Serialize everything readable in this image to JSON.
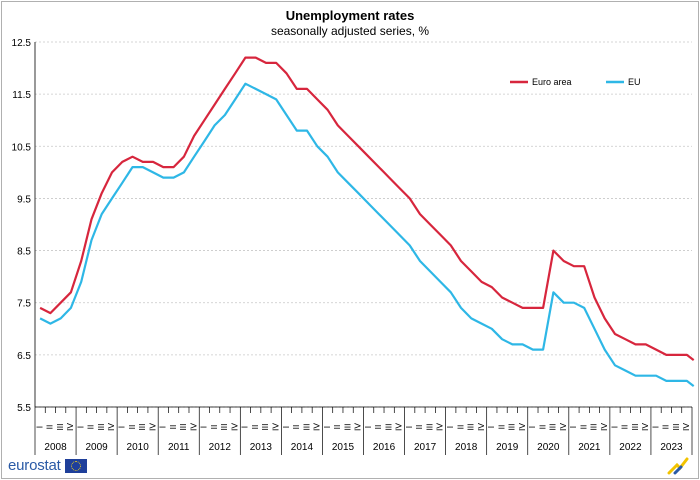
{
  "chart_data": {
    "type": "line",
    "title": "Unemployment rates",
    "subtitle": "seasonally adjusted series, %",
    "xlabel": "",
    "ylabel": "",
    "ylim": [
      5.5,
      12.5
    ],
    "yticks": [
      "5.5",
      "6.5",
      "7.5",
      "8.5",
      "9.5",
      "10.5",
      "11.5",
      "12.5"
    ],
    "x_start": "2008-01",
    "quarter_labels": [
      "I",
      "II",
      "III",
      "IV"
    ],
    "years": [
      "2008",
      "2009",
      "2010",
      "2011",
      "2012",
      "2013",
      "2014",
      "2015",
      "2016",
      "2017",
      "2018",
      "2019",
      "2020",
      "2021",
      "2022",
      "2023"
    ],
    "legend_position": "top-right",
    "grid": "horizontal",
    "series": [
      {
        "name": "Euro area",
        "color": "#d7263d",
        "points": [
          [
            "2008-01",
            7.4
          ],
          [
            "2008-04",
            7.3
          ],
          [
            "2008-07",
            7.5
          ],
          [
            "2008-10",
            7.7
          ],
          [
            "2009-01",
            8.3
          ],
          [
            "2009-04",
            9.1
          ],
          [
            "2009-07",
            9.6
          ],
          [
            "2009-10",
            10.0
          ],
          [
            "2010-01",
            10.2
          ],
          [
            "2010-04",
            10.3
          ],
          [
            "2010-07",
            10.2
          ],
          [
            "2010-10",
            10.2
          ],
          [
            "2011-01",
            10.1
          ],
          [
            "2011-04",
            10.1
          ],
          [
            "2011-07",
            10.3
          ],
          [
            "2011-10",
            10.7
          ],
          [
            "2012-01",
            11.0
          ],
          [
            "2012-04",
            11.3
          ],
          [
            "2012-07",
            11.6
          ],
          [
            "2012-10",
            11.9
          ],
          [
            "2013-01",
            12.2
          ],
          [
            "2013-04",
            12.2
          ],
          [
            "2013-07",
            12.1
          ],
          [
            "2013-10",
            12.1
          ],
          [
            "2014-01",
            11.9
          ],
          [
            "2014-04",
            11.6
          ],
          [
            "2014-07",
            11.6
          ],
          [
            "2014-10",
            11.4
          ],
          [
            "2015-01",
            11.2
          ],
          [
            "2015-04",
            10.9
          ],
          [
            "2015-07",
            10.7
          ],
          [
            "2015-10",
            10.5
          ],
          [
            "2016-01",
            10.3
          ],
          [
            "2016-04",
            10.1
          ],
          [
            "2016-07",
            9.9
          ],
          [
            "2016-10",
            9.7
          ],
          [
            "2017-01",
            9.5
          ],
          [
            "2017-04",
            9.2
          ],
          [
            "2017-07",
            9.0
          ],
          [
            "2017-10",
            8.8
          ],
          [
            "2018-01",
            8.6
          ],
          [
            "2018-04",
            8.3
          ],
          [
            "2018-07",
            8.1
          ],
          [
            "2018-10",
            7.9
          ],
          [
            "2019-01",
            7.8
          ],
          [
            "2019-04",
            7.6
          ],
          [
            "2019-07",
            7.5
          ],
          [
            "2019-10",
            7.4
          ],
          [
            "2020-01",
            7.4
          ],
          [
            "2020-04",
            7.4
          ],
          [
            "2020-07",
            8.5
          ],
          [
            "2020-10",
            8.3
          ],
          [
            "2021-01",
            8.2
          ],
          [
            "2021-04",
            8.2
          ],
          [
            "2021-07",
            7.6
          ],
          [
            "2021-10",
            7.2
          ],
          [
            "2022-01",
            6.9
          ],
          [
            "2022-04",
            6.8
          ],
          [
            "2022-07",
            6.7
          ],
          [
            "2022-10",
            6.7
          ],
          [
            "2023-01",
            6.6
          ],
          [
            "2023-04",
            6.5
          ],
          [
            "2023-07",
            6.5
          ],
          [
            "2023-10",
            6.5
          ],
          [
            "2023-12",
            6.4
          ]
        ]
      },
      {
        "name": "EU",
        "color": "#2eb7e6",
        "points": [
          [
            "2008-01",
            7.2
          ],
          [
            "2008-04",
            7.1
          ],
          [
            "2008-07",
            7.2
          ],
          [
            "2008-10",
            7.4
          ],
          [
            "2009-01",
            7.9
          ],
          [
            "2009-04",
            8.7
          ],
          [
            "2009-07",
            9.2
          ],
          [
            "2009-10",
            9.5
          ],
          [
            "2010-01",
            9.8
          ],
          [
            "2010-04",
            10.1
          ],
          [
            "2010-07",
            10.1
          ],
          [
            "2010-10",
            10.0
          ],
          [
            "2011-01",
            9.9
          ],
          [
            "2011-04",
            9.9
          ],
          [
            "2011-07",
            10.0
          ],
          [
            "2011-10",
            10.3
          ],
          [
            "2012-01",
            10.6
          ],
          [
            "2012-04",
            10.9
          ],
          [
            "2012-07",
            11.1
          ],
          [
            "2012-10",
            11.4
          ],
          [
            "2013-01",
            11.7
          ],
          [
            "2013-04",
            11.6
          ],
          [
            "2013-07",
            11.5
          ],
          [
            "2013-10",
            11.4
          ],
          [
            "2014-01",
            11.1
          ],
          [
            "2014-04",
            10.8
          ],
          [
            "2014-07",
            10.8
          ],
          [
            "2014-10",
            10.5
          ],
          [
            "2015-01",
            10.3
          ],
          [
            "2015-04",
            10.0
          ],
          [
            "2015-07",
            9.8
          ],
          [
            "2015-10",
            9.6
          ],
          [
            "2016-01",
            9.4
          ],
          [
            "2016-04",
            9.2
          ],
          [
            "2016-07",
            9.0
          ],
          [
            "2016-10",
            8.8
          ],
          [
            "2017-01",
            8.6
          ],
          [
            "2017-04",
            8.3
          ],
          [
            "2017-07",
            8.1
          ],
          [
            "2017-10",
            7.9
          ],
          [
            "2018-01",
            7.7
          ],
          [
            "2018-04",
            7.4
          ],
          [
            "2018-07",
            7.2
          ],
          [
            "2018-10",
            7.1
          ],
          [
            "2019-01",
            7.0
          ],
          [
            "2019-04",
            6.8
          ],
          [
            "2019-07",
            6.7
          ],
          [
            "2019-10",
            6.7
          ],
          [
            "2020-01",
            6.6
          ],
          [
            "2020-04",
            6.6
          ],
          [
            "2020-07",
            7.7
          ],
          [
            "2020-10",
            7.5
          ],
          [
            "2021-01",
            7.5
          ],
          [
            "2021-04",
            7.4
          ],
          [
            "2021-07",
            7.0
          ],
          [
            "2021-10",
            6.6
          ],
          [
            "2022-01",
            6.3
          ],
          [
            "2022-04",
            6.2
          ],
          [
            "2022-07",
            6.1
          ],
          [
            "2022-10",
            6.1
          ],
          [
            "2023-01",
            6.1
          ],
          [
            "2023-04",
            6.0
          ],
          [
            "2023-07",
            6.0
          ],
          [
            "2023-10",
            6.0
          ],
          [
            "2023-12",
            5.9
          ]
        ]
      }
    ]
  },
  "logo": {
    "text": "eurostat",
    "flag_icon": "eu-flag-icon"
  },
  "corner_icon": "eurostat-mark-icon"
}
